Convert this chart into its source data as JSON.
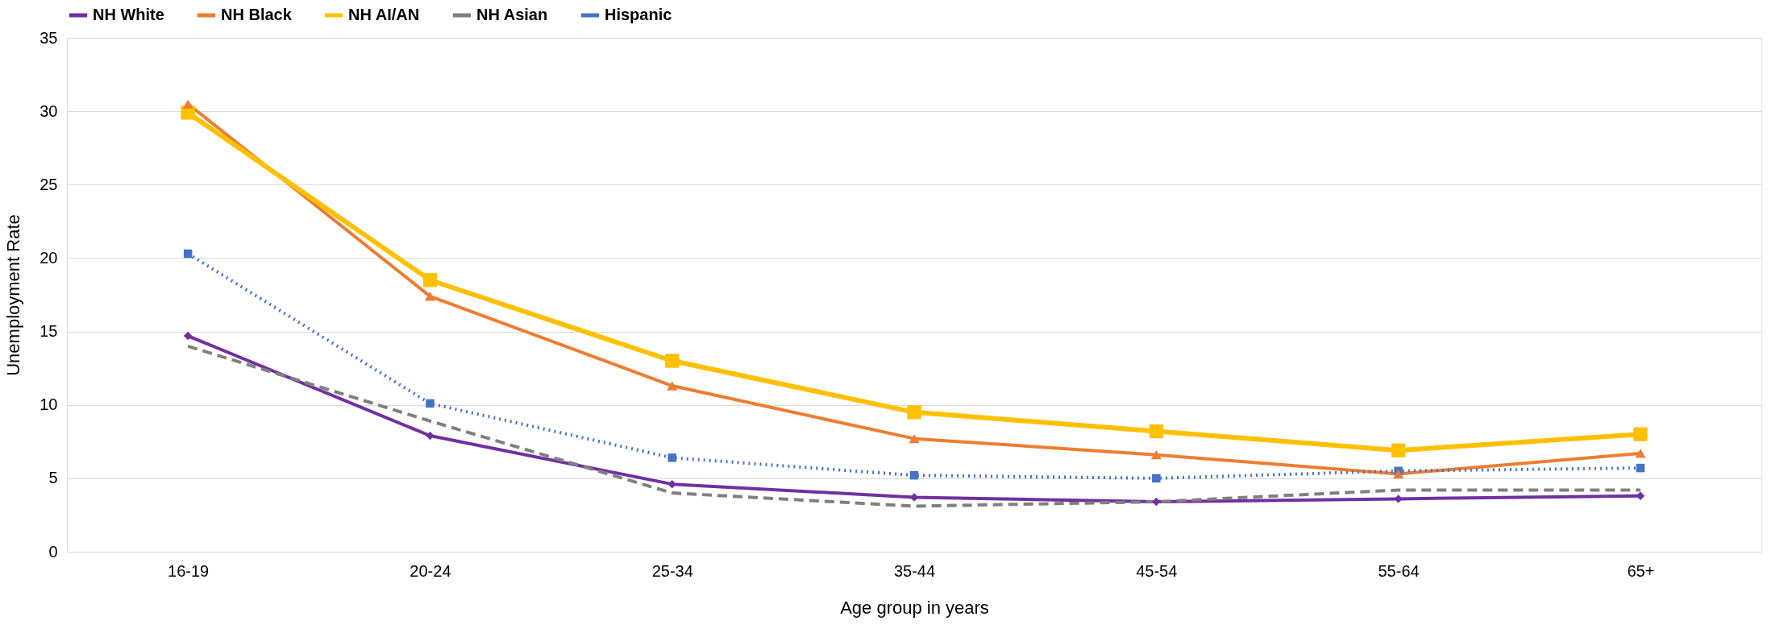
{
  "chart_data": {
    "type": "line",
    "xlabel": "Age group in years",
    "ylabel": "Unemployment Rate",
    "categories": [
      "16-19",
      "20-24",
      "25-34",
      "35-44",
      "45-54",
      "55-64",
      "65+"
    ],
    "ylim": [
      0,
      35
    ],
    "yticks": [
      0,
      5,
      10,
      15,
      20,
      25,
      30,
      35
    ],
    "grid": "y",
    "legend": "top",
    "series": [
      {
        "name": "NH White",
        "color": "#7030a0",
        "marker": "diamond",
        "line_style": "solid",
        "values": [
          14.7,
          7.9,
          4.6,
          3.7,
          3.4,
          3.6,
          3.8
        ]
      },
      {
        "name": "NH Black",
        "color": "#ed7d31",
        "marker": "triangle",
        "line_style": "solid",
        "values": [
          30.5,
          17.4,
          11.3,
          7.7,
          6.6,
          5.3,
          6.7
        ]
      },
      {
        "name": "NH AI/AN",
        "color": "#ffc000",
        "marker": "square",
        "line_style": "solid",
        "values": [
          29.9,
          18.5,
          13.0,
          9.5,
          8.2,
          6.9,
          8.0
        ]
      },
      {
        "name": "NH Asian",
        "color": "#808080",
        "marker": "none",
        "line_style": "dashed",
        "values": [
          14.0,
          8.9,
          4.0,
          3.1,
          3.4,
          4.2,
          4.2
        ]
      },
      {
        "name": "Hispanic",
        "color": "#4472c4",
        "marker": "square",
        "line_style": "dotted",
        "values": [
          20.3,
          10.1,
          6.4,
          5.2,
          5.0,
          5.5,
          5.7
        ]
      }
    ]
  }
}
